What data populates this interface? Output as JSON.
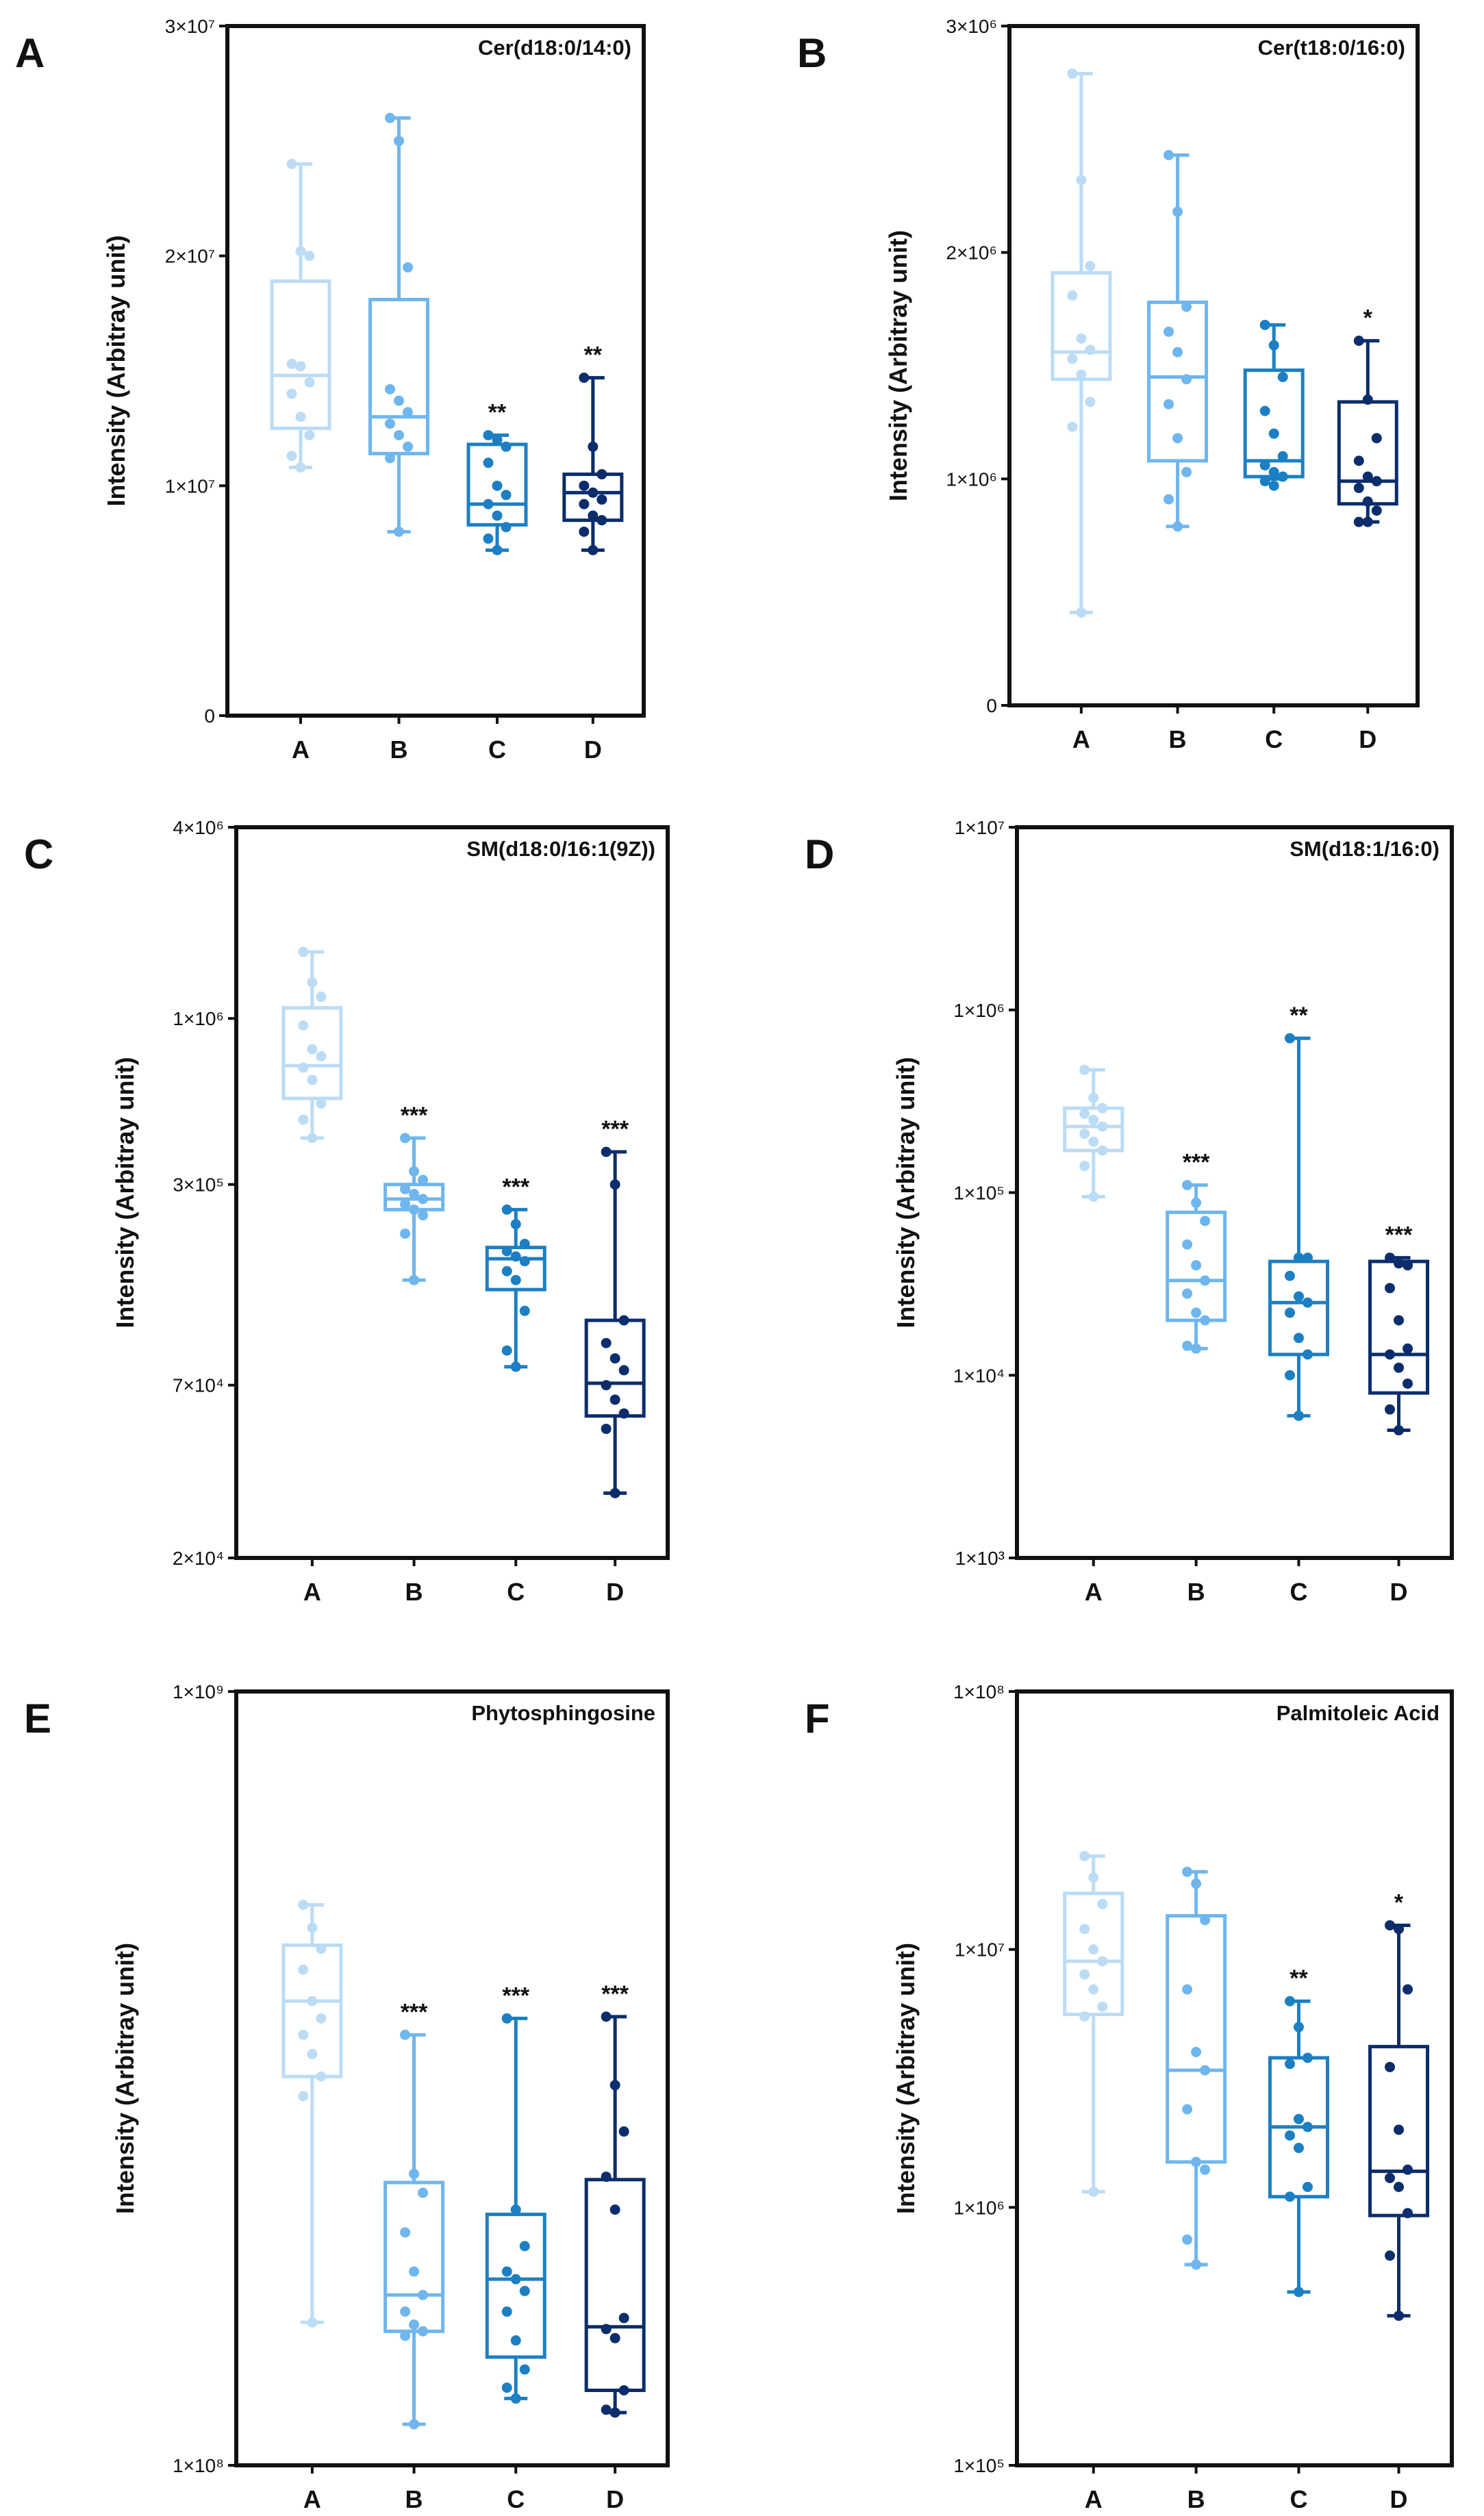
{
  "chart_data": [
    {
      "panel": "A",
      "type": "box",
      "title": "Cer(d18:0/14:0)",
      "ylabel": "Intensity (Arbitray unit)",
      "yscale": "linear",
      "ylim": [
        0,
        30000000
      ],
      "yticks": [
        0,
        10000000,
        20000000,
        30000000
      ],
      "ytick_labels": [
        "0",
        "1×10⁷",
        "2×10⁷",
        "3×10⁷"
      ],
      "categories": [
        "A",
        "B",
        "C",
        "D"
      ],
      "colors": [
        "#bcdcf5",
        "#6fb6ee",
        "#1d7fc3",
        "#0b2d6b"
      ],
      "boxes": [
        {
          "min": 10800000,
          "q1": 12500000,
          "median": 14800000,
          "q3": 18900000,
          "max": 24000000
        },
        {
          "min": 8000000,
          "q1": 11400000,
          "median": 13000000,
          "q3": 18100000,
          "max": 26000000
        },
        {
          "min": 7200000,
          "q1": 8300000,
          "median": 9200000,
          "q3": 11800000,
          "max": 12200000
        },
        {
          "min": 7200000,
          "q1": 8500000,
          "median": 9700000,
          "q3": 10500000,
          "max": 14700000
        }
      ],
      "points": [
        [
          24000000,
          20200000,
          20000000,
          15300000,
          15200000,
          14500000,
          14000000,
          13000000,
          12200000,
          11300000,
          10800000
        ],
        [
          26000000,
          25000000,
          19500000,
          14200000,
          13700000,
          13200000,
          12700000,
          12200000,
          11700000,
          11200000,
          8000000
        ],
        [
          12200000,
          12000000,
          11700000,
          11000000,
          10000000,
          9600000,
          9200000,
          8700000,
          8200000,
          7700000,
          7200000
        ],
        [
          14700000,
          11700000,
          10500000,
          10000000,
          9700000,
          9400000,
          9200000,
          8700000,
          8500000,
          8000000,
          7200000
        ]
      ],
      "significance": [
        "",
        "",
        "**",
        "**"
      ]
    },
    {
      "panel": "B",
      "type": "box",
      "title": "Cer(t18:0/16:0)",
      "ylabel": "Intensity (Arbitray unit)",
      "yscale": "linear",
      "ylim": [
        0,
        3000000
      ],
      "yticks": [
        0,
        1000000,
        2000000,
        3000000
      ],
      "ytick_labels": [
        "0",
        "1×10⁶",
        "2×10⁶",
        "3×10⁶"
      ],
      "categories": [
        "A",
        "B",
        "C",
        "D"
      ],
      "colors": [
        "#bcdcf5",
        "#6fb6ee",
        "#1d7fc3",
        "#0b2d6b"
      ],
      "boxes": [
        {
          "min": 410000,
          "q1": 1440000,
          "median": 1560000,
          "q3": 1910000,
          "max": 2790000
        },
        {
          "min": 790000,
          "q1": 1080000,
          "median": 1450000,
          "q3": 1780000,
          "max": 2430000
        },
        {
          "min": 1000000,
          "q1": 1010000,
          "median": 1080000,
          "q3": 1480000,
          "max": 1680000
        },
        {
          "min": 810000,
          "q1": 890000,
          "median": 990000,
          "q3": 1340000,
          "max": 1610000
        }
      ],
      "points": [
        [
          2790000,
          2320000,
          1940000,
          1810000,
          1620000,
          1570000,
          1530000,
          1460000,
          1340000,
          1230000,
          410000
        ],
        [
          2430000,
          2180000,
          1760000,
          1650000,
          1560000,
          1440000,
          1330000,
          1180000,
          1030000,
          910000,
          790000
        ],
        [
          1680000,
          1590000,
          1450000,
          1300000,
          1200000,
          1100000,
          1060000,
          1030000,
          1010000,
          990000,
          970000
        ],
        [
          1610000,
          1350000,
          1180000,
          1080000,
          1010000,
          990000,
          960000,
          900000,
          860000,
          810000,
          810000
        ]
      ],
      "significance": [
        "",
        "",
        "",
        "*"
      ]
    },
    {
      "panel": "C",
      "type": "box",
      "title": "SM(d18:0/16:1(9Z))",
      "ylabel": "Intensity (Arbitray unit)",
      "yscale": "log",
      "ylim": [
        20000,
        4000000
      ],
      "yticks": [
        20000,
        70000,
        300000,
        1000000,
        4000000
      ],
      "ytick_labels": [
        "2×10⁴",
        "7×10⁴",
        "3×10⁵",
        "1×10⁶",
        "4×10⁶"
      ],
      "categories": [
        "A",
        "B",
        "C",
        "D"
      ],
      "colors": [
        "#bcdcf5",
        "#6fb6ee",
        "#1d7fc3",
        "#0b2d6b"
      ],
      "boxes": [
        {
          "min": 420000,
          "q1": 560000,
          "median": 710000,
          "q3": 1080000,
          "max": 1620000
        },
        {
          "min": 150000,
          "q1": 250000,
          "median": 270000,
          "q3": 300000,
          "max": 420000
        },
        {
          "min": 80000,
          "q1": 140000,
          "median": 175000,
          "q3": 190000,
          "max": 250000
        },
        {
          "min": 32000,
          "q1": 56000,
          "median": 71000,
          "q3": 112000,
          "max": 380000
        }
      ],
      "points": [
        [
          1620000,
          1300000,
          1170000,
          950000,
          800000,
          760000,
          700000,
          640000,
          540000,
          480000,
          420000
        ],
        [
          420000,
          330000,
          310000,
          290000,
          280000,
          270000,
          260000,
          250000,
          240000,
          210000,
          150000
        ],
        [
          250000,
          225000,
          195000,
          185000,
          178000,
          172000,
          160000,
          150000,
          120000,
          90000,
          80000
        ],
        [
          380000,
          300000,
          112000,
          95000,
          85000,
          78000,
          70000,
          63000,
          57000,
          51000,
          32000
        ]
      ],
      "significance": [
        "",
        "***",
        "***",
        "***"
      ]
    },
    {
      "panel": "D",
      "type": "box",
      "title": "SM(d18:1/16:0)",
      "ylabel": "Intensity (Arbitray unit)",
      "yscale": "log",
      "ylim": [
        1000,
        10000000
      ],
      "yticks": [
        1000,
        10000,
        100000,
        1000000,
        10000000
      ],
      "ytick_labels": [
        "1×10³",
        "1×10⁴",
        "1×10⁵",
        "1×10⁶",
        "1×10⁷"
      ],
      "categories": [
        "A",
        "B",
        "C",
        "D"
      ],
      "colors": [
        "#bcdcf5",
        "#6fb6ee",
        "#1d7fc3",
        "#0b2d6b"
      ],
      "boxes": [
        {
          "min": 95000,
          "q1": 170000,
          "median": 230000,
          "q3": 290000,
          "max": 470000
        },
        {
          "min": 14000,
          "q1": 20000,
          "median": 33000,
          "q3": 78000,
          "max": 110000
        },
        {
          "min": 6000,
          "q1": 13000,
          "median": 25000,
          "q3": 42000,
          "max": 700000
        },
        {
          "min": 5000,
          "q1": 8000,
          "median": 13000,
          "q3": 42000,
          "max": 44000
        }
      ],
      "points": [
        [
          470000,
          330000,
          290000,
          270000,
          250000,
          230000,
          210000,
          190000,
          170000,
          140000,
          95000
        ],
        [
          110000,
          88000,
          70000,
          52000,
          40000,
          33000,
          28000,
          22000,
          20000,
          14500,
          14000
        ],
        [
          700000,
          44000,
          44000,
          35000,
          27000,
          25000,
          22000,
          16000,
          13000,
          10000,
          6000
        ],
        [
          44000,
          41000,
          40000,
          30000,
          20000,
          14000,
          13000,
          11000,
          9000,
          6500,
          5000
        ]
      ],
      "significance": [
        "",
        "***",
        "**",
        "***"
      ]
    },
    {
      "panel": "E",
      "type": "box",
      "title": "Phytosphingosine",
      "ylabel": "Intensity (Arbitray unit)",
      "yscale": "log",
      "ylim": [
        100000000,
        1000000000
      ],
      "yticks": [
        100000000,
        1000000000
      ],
      "ytick_labels": [
        "1×10⁸",
        "1×10⁹"
      ],
      "categories": [
        "A",
        "B",
        "C",
        "D"
      ],
      "colors": [
        "#bcdcf5",
        "#6fb6ee",
        "#1d7fc3",
        "#0b2d6b"
      ],
      "boxes": [
        {
          "min": 153000000,
          "q1": 318000000,
          "median": 398000000,
          "q3": 470000000,
          "max": 530000000
        },
        {
          "min": 113000000,
          "q1": 149000000,
          "median": 166000000,
          "q3": 232000000,
          "max": 360000000
        },
        {
          "min": 122000000,
          "q1": 138000000,
          "median": 174000000,
          "q3": 211000000,
          "max": 378000000
        },
        {
          "min": 117000000,
          "q1": 125000000,
          "median": 151000000,
          "q3": 234000000,
          "max": 380000000
        }
      ],
      "points": [
        [
          530000000,
          495000000,
          465000000,
          437000000,
          398000000,
          378000000,
          360000000,
          340000000,
          318000000,
          300000000,
          153000000
        ],
        [
          360000000,
          238000000,
          225000000,
          200000000,
          178000000,
          166000000,
          158000000,
          152000000,
          149000000,
          147000000,
          113000000
        ],
        [
          378000000,
          214000000,
          192000000,
          178000000,
          174000000,
          168000000,
          158000000,
          145000000,
          133000000,
          126000000,
          122000000
        ],
        [
          380000000,
          310000000,
          270000000,
          236000000,
          214000000,
          155000000,
          150000000,
          146000000,
          125000000,
          118000000,
          117000000
        ]
      ],
      "significance": [
        "",
        "***",
        "***",
        "***"
      ]
    },
    {
      "panel": "F",
      "type": "box",
      "title": "Palmitoleic Acid",
      "ylabel": "Intensity (Arbitray unit)",
      "yscale": "log",
      "ylim": [
        100000,
        100000000
      ],
      "yticks": [
        100000,
        1000000,
        10000000,
        100000000
      ],
      "ytick_labels": [
        "1×10⁵",
        "1×10⁶",
        "1×10⁷",
        "1×10⁸"
      ],
      "categories": [
        "A",
        "B",
        "C",
        "D"
      ],
      "colors": [
        "#bcdcf5",
        "#6fb6ee",
        "#1d7fc3",
        "#0b2d6b"
      ],
      "boxes": [
        {
          "min": 1150000,
          "q1": 5600000,
          "median": 9000000,
          "q3": 16500000,
          "max": 23000000
        },
        {
          "min": 600000,
          "q1": 1500000,
          "median": 3400000,
          "q3": 13500000,
          "max": 20000000
        },
        {
          "min": 470000,
          "q1": 1100000,
          "median": 2050000,
          "q3": 3800000,
          "max": 6300000
        },
        {
          "min": 380000,
          "q1": 930000,
          "median": 1380000,
          "q3": 4200000,
          "max": 12400000
        }
      ],
      "points": [
        [
          23000000,
          19000000,
          15000000,
          12000000,
          10000000,
          9000000,
          8000000,
          7000000,
          6000000,
          5500000,
          1150000
        ],
        [
          20000000,
          18000000,
          13000000,
          7000000,
          4000000,
          3400000,
          2400000,
          1500000,
          1400000,
          750000,
          600000
        ],
        [
          6300000,
          5000000,
          3800000,
          3600000,
          2200000,
          2050000,
          1900000,
          1700000,
          1200000,
          1100000,
          470000
        ],
        [
          12400000,
          12000000,
          7000000,
          3500000,
          2000000,
          1400000,
          1300000,
          1200000,
          950000,
          650000,
          380000
        ]
      ],
      "significance": [
        "",
        "",
        "**",
        "*"
      ]
    }
  ]
}
